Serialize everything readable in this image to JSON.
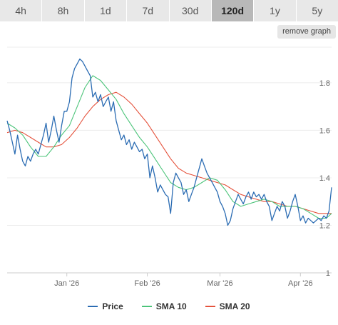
{
  "tabs": [
    {
      "label": "4h",
      "active": false
    },
    {
      "label": "8h",
      "active": false
    },
    {
      "label": "1d",
      "active": false
    },
    {
      "label": "7d",
      "active": false
    },
    {
      "label": "30d",
      "active": false
    },
    {
      "label": "120d",
      "active": true
    },
    {
      "label": "1y",
      "active": false
    },
    {
      "label": "5y",
      "active": false
    }
  ],
  "remove_graph_label": "remove graph",
  "colors": {
    "price": "#2b6cb3",
    "sma10": "#4cc47a",
    "sma20": "#e5533d",
    "grid": "#ececec",
    "axis": "#cccccc"
  },
  "chart_data": {
    "type": "line",
    "title": "",
    "xlabel": "",
    "ylabel": "",
    "x_ticks": [
      "Jan '26",
      "Feb '26",
      "Mar '26",
      "Apr '26"
    ],
    "y_ticks": [
      "1",
      "1.2",
      "1.4",
      "1.6",
      "1.8"
    ],
    "ylim": [
      1.0,
      1.95
    ],
    "xlim": [
      "2025-12-09",
      "2026-04-13"
    ],
    "grid": true,
    "legend_position": "bottom",
    "series": [
      {
        "name": "Price",
        "color": "#2b6cb3",
        "points": [
          [
            "2025-12-09",
            1.64
          ],
          [
            "2025-12-10",
            1.6
          ],
          [
            "2025-12-11",
            1.55
          ],
          [
            "2025-12-12",
            1.5
          ],
          [
            "2025-12-13",
            1.58
          ],
          [
            "2025-12-14",
            1.52
          ],
          [
            "2025-12-15",
            1.47
          ],
          [
            "2025-12-16",
            1.45
          ],
          [
            "2025-12-17",
            1.49
          ],
          [
            "2025-12-18",
            1.47
          ],
          [
            "2025-12-19",
            1.5
          ],
          [
            "2025-12-20",
            1.52
          ],
          [
            "2025-12-21",
            1.5
          ],
          [
            "2025-12-22",
            1.54
          ],
          [
            "2025-12-23",
            1.58
          ],
          [
            "2025-12-24",
            1.63
          ],
          [
            "2025-12-25",
            1.55
          ],
          [
            "2025-12-26",
            1.6
          ],
          [
            "2025-12-27",
            1.66
          ],
          [
            "2025-12-28",
            1.6
          ],
          [
            "2025-12-29",
            1.55
          ],
          [
            "2025-12-30",
            1.62
          ],
          [
            "2025-12-31",
            1.68
          ],
          [
            "2026-01-01",
            1.68
          ],
          [
            "2026-01-02",
            1.72
          ],
          [
            "2026-01-03",
            1.82
          ],
          [
            "2026-01-04",
            1.86
          ],
          [
            "2026-01-05",
            1.88
          ],
          [
            "2026-01-06",
            1.9
          ],
          [
            "2026-01-07",
            1.89
          ],
          [
            "2026-01-08",
            1.87
          ],
          [
            "2026-01-09",
            1.85
          ],
          [
            "2026-01-10",
            1.83
          ],
          [
            "2026-01-11",
            1.74
          ],
          [
            "2026-01-12",
            1.76
          ],
          [
            "2026-01-13",
            1.72
          ],
          [
            "2026-01-14",
            1.75
          ],
          [
            "2026-01-15",
            1.7
          ],
          [
            "2026-01-16",
            1.72
          ],
          [
            "2026-01-17",
            1.74
          ],
          [
            "2026-01-18",
            1.68
          ],
          [
            "2026-01-19",
            1.72
          ],
          [
            "2026-01-20",
            1.64
          ],
          [
            "2026-01-21",
            1.6
          ],
          [
            "2026-01-22",
            1.56
          ],
          [
            "2026-01-23",
            1.58
          ],
          [
            "2026-01-24",
            1.54
          ],
          [
            "2026-01-25",
            1.56
          ],
          [
            "2026-01-26",
            1.52
          ],
          [
            "2026-01-27",
            1.55
          ],
          [
            "2026-01-28",
            1.53
          ],
          [
            "2026-01-29",
            1.51
          ],
          [
            "2026-01-30",
            1.52
          ],
          [
            "2026-01-31",
            1.48
          ],
          [
            "2026-02-01",
            1.5
          ],
          [
            "2026-02-02",
            1.4
          ],
          [
            "2026-02-03",
            1.45
          ],
          [
            "2026-02-04",
            1.4
          ],
          [
            "2026-02-05",
            1.34
          ],
          [
            "2026-02-06",
            1.37
          ],
          [
            "2026-02-07",
            1.35
          ],
          [
            "2026-02-08",
            1.33
          ],
          [
            "2026-02-09",
            1.32
          ],
          [
            "2026-02-10",
            1.25
          ],
          [
            "2026-02-11",
            1.38
          ],
          [
            "2026-02-12",
            1.42
          ],
          [
            "2026-02-13",
            1.4
          ],
          [
            "2026-02-14",
            1.38
          ],
          [
            "2026-02-15",
            1.33
          ],
          [
            "2026-02-16",
            1.35
          ],
          [
            "2026-02-17",
            1.3
          ],
          [
            "2026-02-18",
            1.33
          ],
          [
            "2026-02-19",
            1.36
          ],
          [
            "2026-02-20",
            1.4
          ],
          [
            "2026-02-21",
            1.44
          ],
          [
            "2026-02-22",
            1.48
          ],
          [
            "2026-02-23",
            1.45
          ],
          [
            "2026-02-24",
            1.42
          ],
          [
            "2026-02-25",
            1.4
          ],
          [
            "2026-02-26",
            1.38
          ],
          [
            "2026-02-27",
            1.36
          ],
          [
            "2026-02-28",
            1.34
          ],
          [
            "2026-03-01",
            1.3
          ],
          [
            "2026-03-02",
            1.28
          ],
          [
            "2026-03-03",
            1.25
          ],
          [
            "2026-03-04",
            1.2
          ],
          [
            "2026-03-05",
            1.22
          ],
          [
            "2026-03-06",
            1.27
          ],
          [
            "2026-03-07",
            1.3
          ],
          [
            "2026-03-08",
            1.33
          ],
          [
            "2026-03-09",
            1.31
          ],
          [
            "2026-03-10",
            1.29
          ],
          [
            "2026-03-11",
            1.32
          ],
          [
            "2026-03-12",
            1.34
          ],
          [
            "2026-03-13",
            1.31
          ],
          [
            "2026-03-14",
            1.34
          ],
          [
            "2026-03-15",
            1.32
          ],
          [
            "2026-03-16",
            1.33
          ],
          [
            "2026-03-17",
            1.31
          ],
          [
            "2026-03-18",
            1.33
          ],
          [
            "2026-03-19",
            1.3
          ],
          [
            "2026-03-20",
            1.28
          ],
          [
            "2026-03-21",
            1.22
          ],
          [
            "2026-03-22",
            1.25
          ],
          [
            "2026-03-23",
            1.28
          ],
          [
            "2026-03-24",
            1.26
          ],
          [
            "2026-03-25",
            1.3
          ],
          [
            "2026-03-26",
            1.28
          ],
          [
            "2026-03-27",
            1.23
          ],
          [
            "2026-03-28",
            1.26
          ],
          [
            "2026-03-29",
            1.3
          ],
          [
            "2026-03-30",
            1.33
          ],
          [
            "2026-03-31",
            1.28
          ],
          [
            "2026-04-01",
            1.22
          ],
          [
            "2026-04-02",
            1.24
          ],
          [
            "2026-04-03",
            1.21
          ],
          [
            "2026-04-04",
            1.23
          ],
          [
            "2026-04-05",
            1.22
          ],
          [
            "2026-04-06",
            1.21
          ],
          [
            "2026-04-07",
            1.22
          ],
          [
            "2026-04-08",
            1.23
          ],
          [
            "2026-04-09",
            1.22
          ],
          [
            "2026-04-10",
            1.24
          ],
          [
            "2026-04-11",
            1.23
          ],
          [
            "2026-04-12",
            1.26
          ],
          [
            "2026-04-13",
            1.36
          ]
        ]
      },
      {
        "name": "SMA 10",
        "color": "#4cc47a",
        "points": [
          [
            "2025-12-09",
            1.63
          ],
          [
            "2025-12-12",
            1.61
          ],
          [
            "2025-12-15",
            1.58
          ],
          [
            "2025-12-18",
            1.53
          ],
          [
            "2025-12-21",
            1.49
          ],
          [
            "2025-12-24",
            1.49
          ],
          [
            "2025-12-27",
            1.53
          ],
          [
            "2025-12-30",
            1.58
          ],
          [
            "2026-01-02",
            1.62
          ],
          [
            "2026-01-05",
            1.7
          ],
          [
            "2026-01-08",
            1.78
          ],
          [
            "2026-01-11",
            1.83
          ],
          [
            "2026-01-14",
            1.81
          ],
          [
            "2026-01-17",
            1.77
          ],
          [
            "2026-01-20",
            1.73
          ],
          [
            "2026-01-23",
            1.67
          ],
          [
            "2026-01-26",
            1.62
          ],
          [
            "2026-01-29",
            1.57
          ],
          [
            "2026-02-01",
            1.53
          ],
          [
            "2026-02-04",
            1.48
          ],
          [
            "2026-02-07",
            1.43
          ],
          [
            "2026-02-10",
            1.38
          ],
          [
            "2026-02-13",
            1.36
          ],
          [
            "2026-02-16",
            1.35
          ],
          [
            "2026-02-19",
            1.36
          ],
          [
            "2026-02-22",
            1.38
          ],
          [
            "2026-02-25",
            1.4
          ],
          [
            "2026-02-28",
            1.39
          ],
          [
            "2026-03-03",
            1.35
          ],
          [
            "2026-03-06",
            1.3
          ],
          [
            "2026-03-09",
            1.28
          ],
          [
            "2026-03-12",
            1.29
          ],
          [
            "2026-03-15",
            1.3
          ],
          [
            "2026-03-18",
            1.31
          ],
          [
            "2026-03-21",
            1.3
          ],
          [
            "2026-03-24",
            1.28
          ],
          [
            "2026-03-27",
            1.28
          ],
          [
            "2026-03-30",
            1.28
          ],
          [
            "2026-04-02",
            1.27
          ],
          [
            "2026-04-05",
            1.25
          ],
          [
            "2026-04-08",
            1.23
          ],
          [
            "2026-04-11",
            1.23
          ],
          [
            "2026-04-13",
            1.25
          ]
        ]
      },
      {
        "name": "SMA 20",
        "color": "#e5533d",
        "points": [
          [
            "2025-12-09",
            1.59
          ],
          [
            "2025-12-12",
            1.6
          ],
          [
            "2025-12-15",
            1.59
          ],
          [
            "2025-12-18",
            1.57
          ],
          [
            "2025-12-21",
            1.55
          ],
          [
            "2025-12-24",
            1.53
          ],
          [
            "2025-12-27",
            1.53
          ],
          [
            "2025-12-30",
            1.54
          ],
          [
            "2026-01-02",
            1.57
          ],
          [
            "2026-01-05",
            1.61
          ],
          [
            "2026-01-08",
            1.66
          ],
          [
            "2026-01-11",
            1.7
          ],
          [
            "2026-01-14",
            1.73
          ],
          [
            "2026-01-17",
            1.75
          ],
          [
            "2026-01-20",
            1.76
          ],
          [
            "2026-01-23",
            1.74
          ],
          [
            "2026-01-26",
            1.71
          ],
          [
            "2026-01-29",
            1.67
          ],
          [
            "2026-02-01",
            1.63
          ],
          [
            "2026-02-04",
            1.58
          ],
          [
            "2026-02-07",
            1.53
          ],
          [
            "2026-02-10",
            1.48
          ],
          [
            "2026-02-13",
            1.44
          ],
          [
            "2026-02-16",
            1.42
          ],
          [
            "2026-02-19",
            1.41
          ],
          [
            "2026-02-22",
            1.4
          ],
          [
            "2026-02-25",
            1.39
          ],
          [
            "2026-02-28",
            1.38
          ],
          [
            "2026-03-03",
            1.37
          ],
          [
            "2026-03-06",
            1.35
          ],
          [
            "2026-03-09",
            1.33
          ],
          [
            "2026-03-12",
            1.32
          ],
          [
            "2026-03-15",
            1.31
          ],
          [
            "2026-03-18",
            1.3
          ],
          [
            "2026-03-21",
            1.3
          ],
          [
            "2026-03-24",
            1.29
          ],
          [
            "2026-03-27",
            1.28
          ],
          [
            "2026-03-30",
            1.28
          ],
          [
            "2026-04-02",
            1.27
          ],
          [
            "2026-04-05",
            1.26
          ],
          [
            "2026-04-08",
            1.25
          ],
          [
            "2026-04-11",
            1.25
          ],
          [
            "2026-04-13",
            1.25
          ]
        ]
      }
    ]
  }
}
